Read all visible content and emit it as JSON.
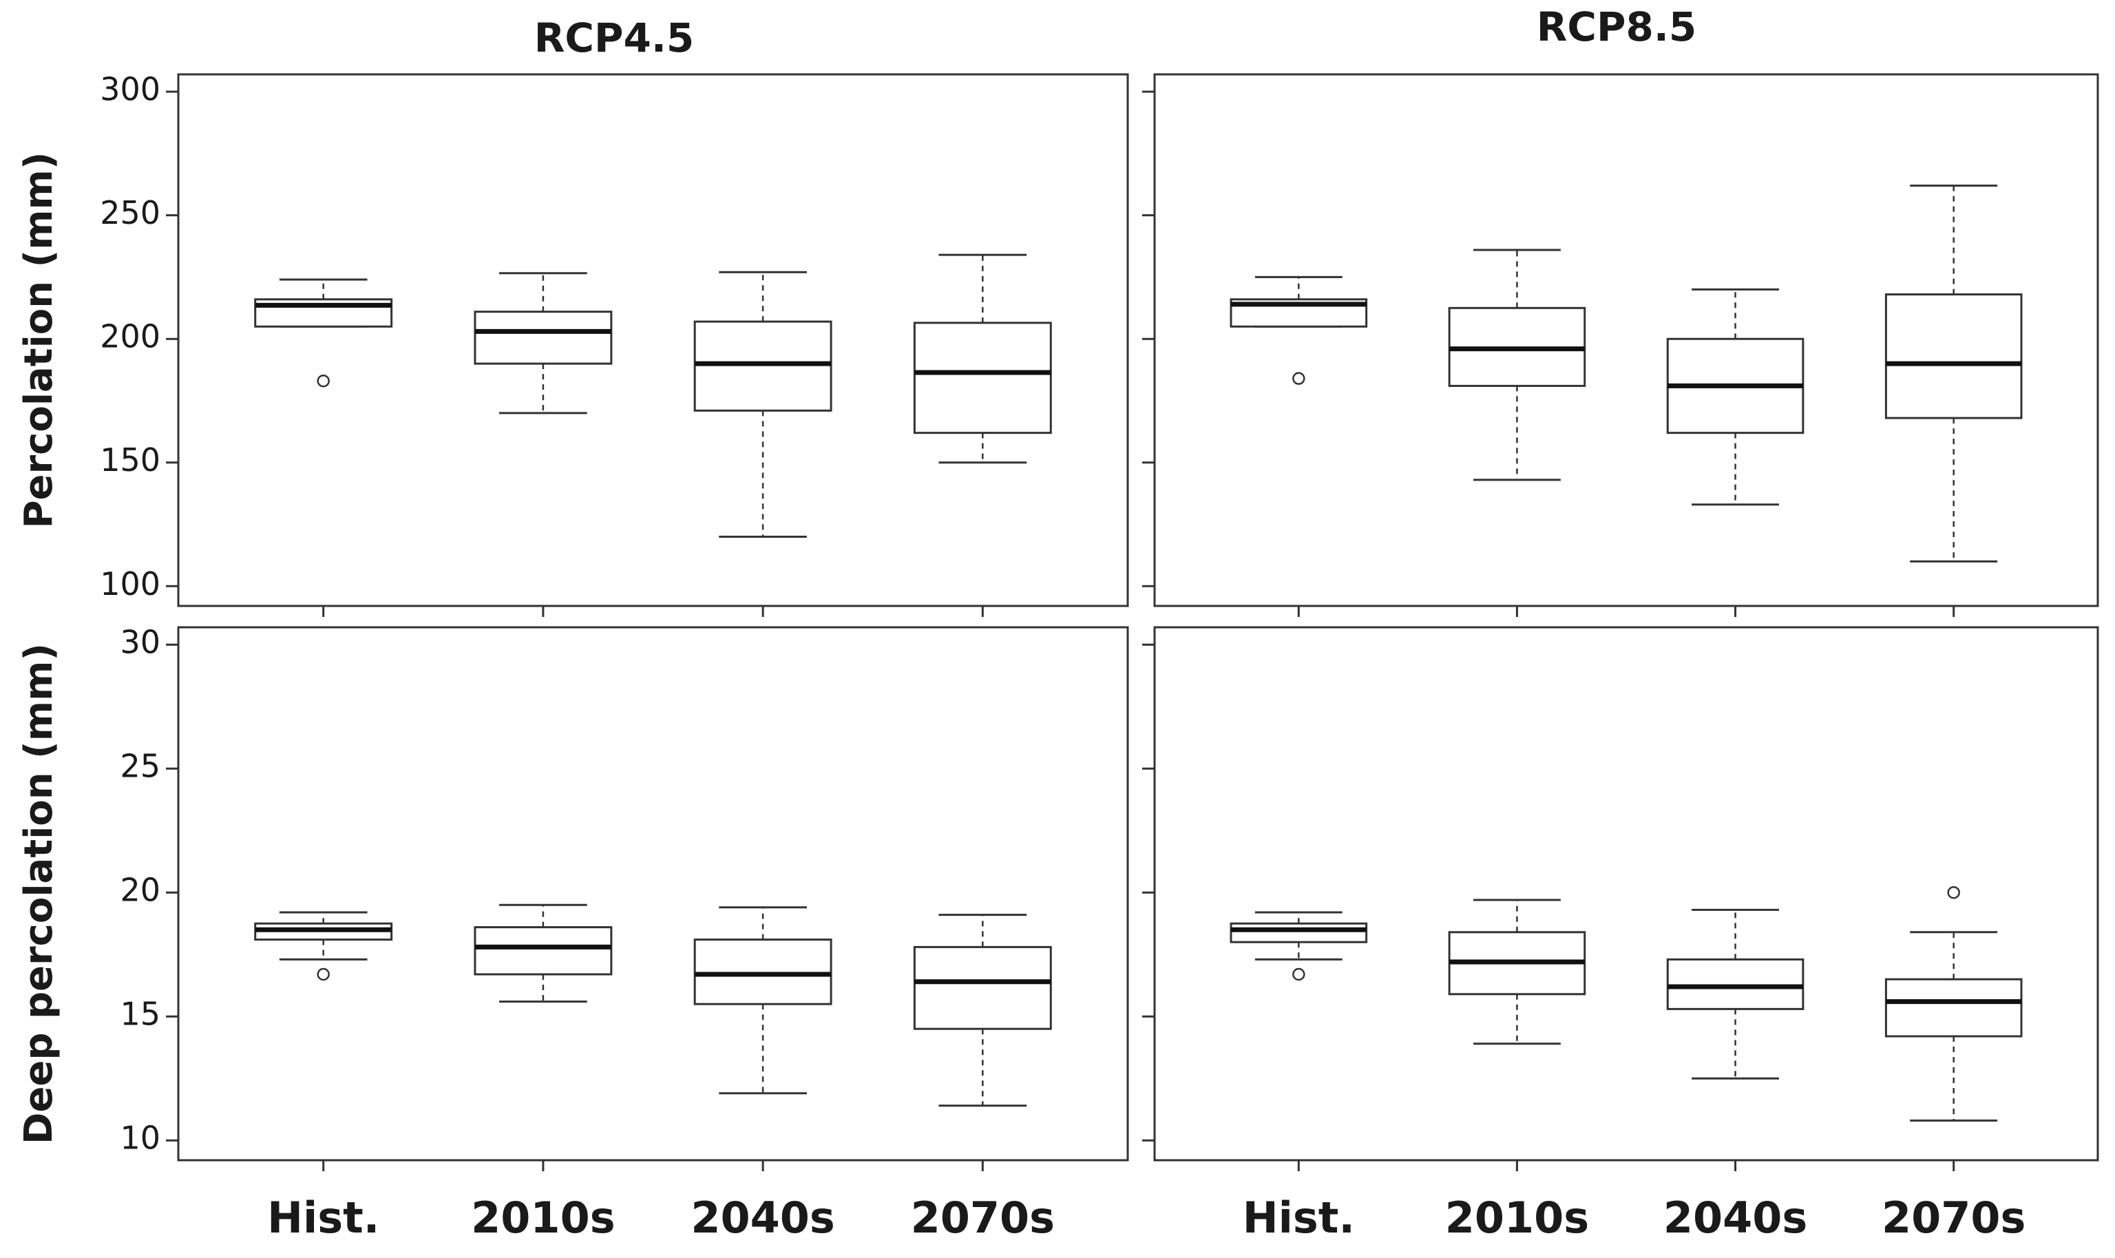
{
  "chart_data": [
    {
      "type": "box",
      "title": "RCP4.5",
      "y_label": "Percolation (mm)",
      "ylim": [
        92,
        307
      ],
      "yticks": [
        100,
        150,
        200,
        250,
        300
      ],
      "show_ytick_labels": true,
      "stats": {
        "whisker_low": [
          205,
          170,
          120,
          150
        ],
        "q1": [
          205,
          190,
          171,
          162
        ],
        "median": [
          213.6,
          203,
          190,
          186.4
        ],
        "q3": [
          216,
          211,
          207,
          206.5
        ],
        "whisker_high": [
          224,
          226.6,
          227,
          234
        ],
        "outliers": [
          [
            183
          ],
          [],
          [],
          []
        ]
      }
    },
    {
      "type": "box",
      "title": "RCP8.5",
      "ylim": [
        92,
        307
      ],
      "yticks": [
        100,
        150,
        200,
        250,
        300
      ],
      "show_ytick_labels": false,
      "stats": {
        "whisker_low": [
          205,
          143,
          133,
          110
        ],
        "q1": [
          205,
          181,
          162,
          168
        ],
        "median": [
          214,
          196,
          181,
          190
        ],
        "q3": [
          216,
          212.5,
          200,
          218
        ],
        "whisker_high": [
          225,
          236,
          220,
          262
        ],
        "outliers": [
          [
            184
          ],
          [],
          [],
          []
        ]
      }
    },
    {
      "type": "box",
      "y_label": "Deep percolation (mm)",
      "categories": [
        "Hist.",
        "2010s",
        "2040s",
        "2070s"
      ],
      "ylim": [
        9.2,
        30.7
      ],
      "yticks": [
        10,
        15,
        20,
        25,
        30
      ],
      "show_ytick_labels": true,
      "stats": {
        "whisker_low": [
          17.3,
          15.6,
          11.9,
          11.4
        ],
        "q1": [
          18.1,
          16.7,
          15.5,
          14.5
        ],
        "median": [
          18.5,
          17.8,
          16.7,
          16.4
        ],
        "q3": [
          18.75,
          18.6,
          18.1,
          17.8
        ],
        "whisker_high": [
          19.2,
          19.5,
          19.4,
          19.1
        ],
        "outliers": [
          [
            16.7
          ],
          [],
          [],
          []
        ]
      }
    },
    {
      "type": "box",
      "categories": [
        "Hist.",
        "2010s",
        "2040s",
        "2070s"
      ],
      "ylim": [
        9.2,
        30.7
      ],
      "yticks": [
        10,
        15,
        20,
        25,
        30
      ],
      "show_ytick_labels": false,
      "stats": {
        "whisker_low": [
          17.3,
          13.9,
          12.5,
          10.8
        ],
        "q1": [
          18,
          15.9,
          15.3,
          14.2
        ],
        "median": [
          18.5,
          17.2,
          16.2,
          15.6
        ],
        "q3": [
          18.75,
          18.4,
          17.3,
          16.5
        ],
        "whisker_high": [
          19.2,
          19.7,
          19.3,
          18.4
        ],
        "outliers": [
          [
            16.7
          ],
          [],
          [],
          [
            20
          ]
        ]
      }
    }
  ]
}
